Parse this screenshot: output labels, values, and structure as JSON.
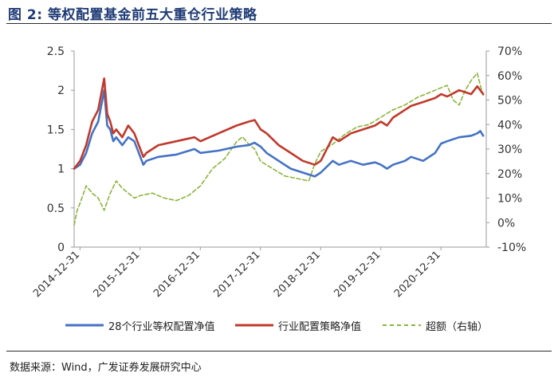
{
  "figure": {
    "title": "图 2: 等权配置基金前五大重仓行业策略",
    "source": "数据来源：Wind，广发证券发展研究中心"
  },
  "legend": {
    "items": [
      {
        "label": "28个行业等权配置净值",
        "color": "#4472c4",
        "style": "solid"
      },
      {
        "label": "行业配置策略净值",
        "color": "#c0392b",
        "style": "solid"
      },
      {
        "label": "超额（右轴）",
        "color": "#8bb43c",
        "style": "dashed"
      }
    ]
  },
  "chart_data": {
    "type": "line",
    "title": "",
    "xlabel": "",
    "ylabel": "",
    "x_ticks": [
      "2014-12-31",
      "2015-12-31",
      "2016-12-31",
      "2017-12-31",
      "2018-12-31",
      "2019-12-31",
      "2020-12-31"
    ],
    "x_range": [
      2014.9,
      2021.75
    ],
    "y_left": {
      "range": [
        0,
        2.5
      ],
      "ticks": [
        "0",
        "0.5",
        "1",
        "1.5",
        "2",
        "2.5"
      ],
      "tick_values": [
        0,
        0.5,
        1,
        1.5,
        2,
        2.5
      ]
    },
    "y_right": {
      "range": [
        -10,
        70
      ],
      "ticks": [
        "-10%",
        "0%",
        "10%",
        "20%",
        "30%",
        "40%",
        "50%",
        "60%",
        "70%"
      ],
      "tick_values": [
        -10,
        0,
        10,
        20,
        30,
        40,
        50,
        60,
        70
      ]
    },
    "grid": false,
    "legend_position": "bottom",
    "series": [
      {
        "name": "28个行业等权配置净值",
        "axis": "left",
        "color": "#4472c4",
        "x": [
          2014.9,
          2015.0,
          2015.1,
          2015.2,
          2015.3,
          2015.4,
          2015.45,
          2015.5,
          2015.55,
          2015.6,
          2015.7,
          2015.8,
          2015.9,
          2016.0,
          2016.05,
          2016.1,
          2016.3,
          2016.6,
          2016.9,
          2017.0,
          2017.3,
          2017.6,
          2017.8,
          2017.9,
          2018.0,
          2018.1,
          2018.3,
          2018.5,
          2018.7,
          2018.9,
          2019.0,
          2019.2,
          2019.3,
          2019.5,
          2019.7,
          2019.9,
          2020.0,
          2020.1,
          2020.2,
          2020.4,
          2020.5,
          2020.7,
          2020.9,
          2021.0,
          2021.1,
          2021.3,
          2021.5,
          2021.6,
          2021.65,
          2021.7
        ],
        "y": [
          1.0,
          1.05,
          1.2,
          1.45,
          1.6,
          2.0,
          1.55,
          1.5,
          1.35,
          1.4,
          1.3,
          1.4,
          1.35,
          1.15,
          1.05,
          1.1,
          1.15,
          1.18,
          1.25,
          1.2,
          1.23,
          1.28,
          1.3,
          1.33,
          1.28,
          1.2,
          1.1,
          1.0,
          0.95,
          0.9,
          0.95,
          1.1,
          1.05,
          1.1,
          1.05,
          1.08,
          1.05,
          1.0,
          1.05,
          1.1,
          1.15,
          1.1,
          1.2,
          1.32,
          1.35,
          1.4,
          1.42,
          1.45,
          1.48,
          1.42
        ]
      },
      {
        "name": "行业配置策略净值",
        "axis": "left",
        "color": "#c0392b",
        "x": [
          2014.9,
          2015.0,
          2015.1,
          2015.2,
          2015.3,
          2015.4,
          2015.45,
          2015.5,
          2015.55,
          2015.6,
          2015.7,
          2015.8,
          2015.9,
          2016.0,
          2016.05,
          2016.1,
          2016.3,
          2016.6,
          2016.9,
          2017.0,
          2017.3,
          2017.6,
          2017.8,
          2017.9,
          2018.0,
          2018.1,
          2018.3,
          2018.5,
          2018.7,
          2018.9,
          2019.0,
          2019.2,
          2019.3,
          2019.5,
          2019.7,
          2019.9,
          2020.0,
          2020.1,
          2020.2,
          2020.4,
          2020.5,
          2020.7,
          2020.9,
          2021.0,
          2021.1,
          2021.3,
          2021.5,
          2021.6,
          2021.65,
          2021.7
        ],
        "y": [
          1.0,
          1.1,
          1.3,
          1.6,
          1.75,
          2.15,
          1.7,
          1.6,
          1.45,
          1.5,
          1.4,
          1.55,
          1.45,
          1.25,
          1.15,
          1.2,
          1.3,
          1.35,
          1.4,
          1.35,
          1.45,
          1.55,
          1.6,
          1.62,
          1.5,
          1.45,
          1.3,
          1.2,
          1.1,
          1.05,
          1.1,
          1.4,
          1.35,
          1.45,
          1.5,
          1.55,
          1.6,
          1.55,
          1.65,
          1.75,
          1.8,
          1.85,
          1.9,
          1.95,
          1.92,
          2.0,
          1.95,
          2.05,
          2.0,
          1.95
        ]
      },
      {
        "name": "超额（右轴）",
        "axis": "right",
        "color": "#8bb43c",
        "x": [
          2014.9,
          2014.95,
          2015.0,
          2015.1,
          2015.2,
          2015.3,
          2015.4,
          2015.5,
          2015.6,
          2015.7,
          2015.8,
          2015.9,
          2016.0,
          2016.2,
          2016.4,
          2016.6,
          2016.8,
          2016.9,
          2017.0,
          2017.2,
          2017.4,
          2017.6,
          2017.7,
          2017.8,
          2017.9,
          2018.0,
          2018.2,
          2018.4,
          2018.6,
          2018.8,
          2018.9,
          2019.0,
          2019.2,
          2019.4,
          2019.6,
          2019.8,
          2020.0,
          2020.2,
          2020.4,
          2020.6,
          2020.8,
          2021.0,
          2021.1,
          2021.2,
          2021.3,
          2021.4,
          2021.5,
          2021.6,
          2021.65,
          2021.7
        ],
        "y": [
          -1,
          5,
          8,
          15,
          12,
          10,
          5,
          12,
          17,
          14,
          12,
          10,
          11,
          12,
          10,
          9,
          11,
          13,
          15,
          22,
          26,
          33,
          35,
          32,
          30,
          25,
          22,
          19,
          18,
          17,
          24,
          29,
          32,
          36,
          39,
          40,
          43,
          46,
          48,
          51,
          53,
          55,
          56,
          50,
          48,
          54,
          58,
          61,
          56,
          52
        ]
      }
    ]
  }
}
